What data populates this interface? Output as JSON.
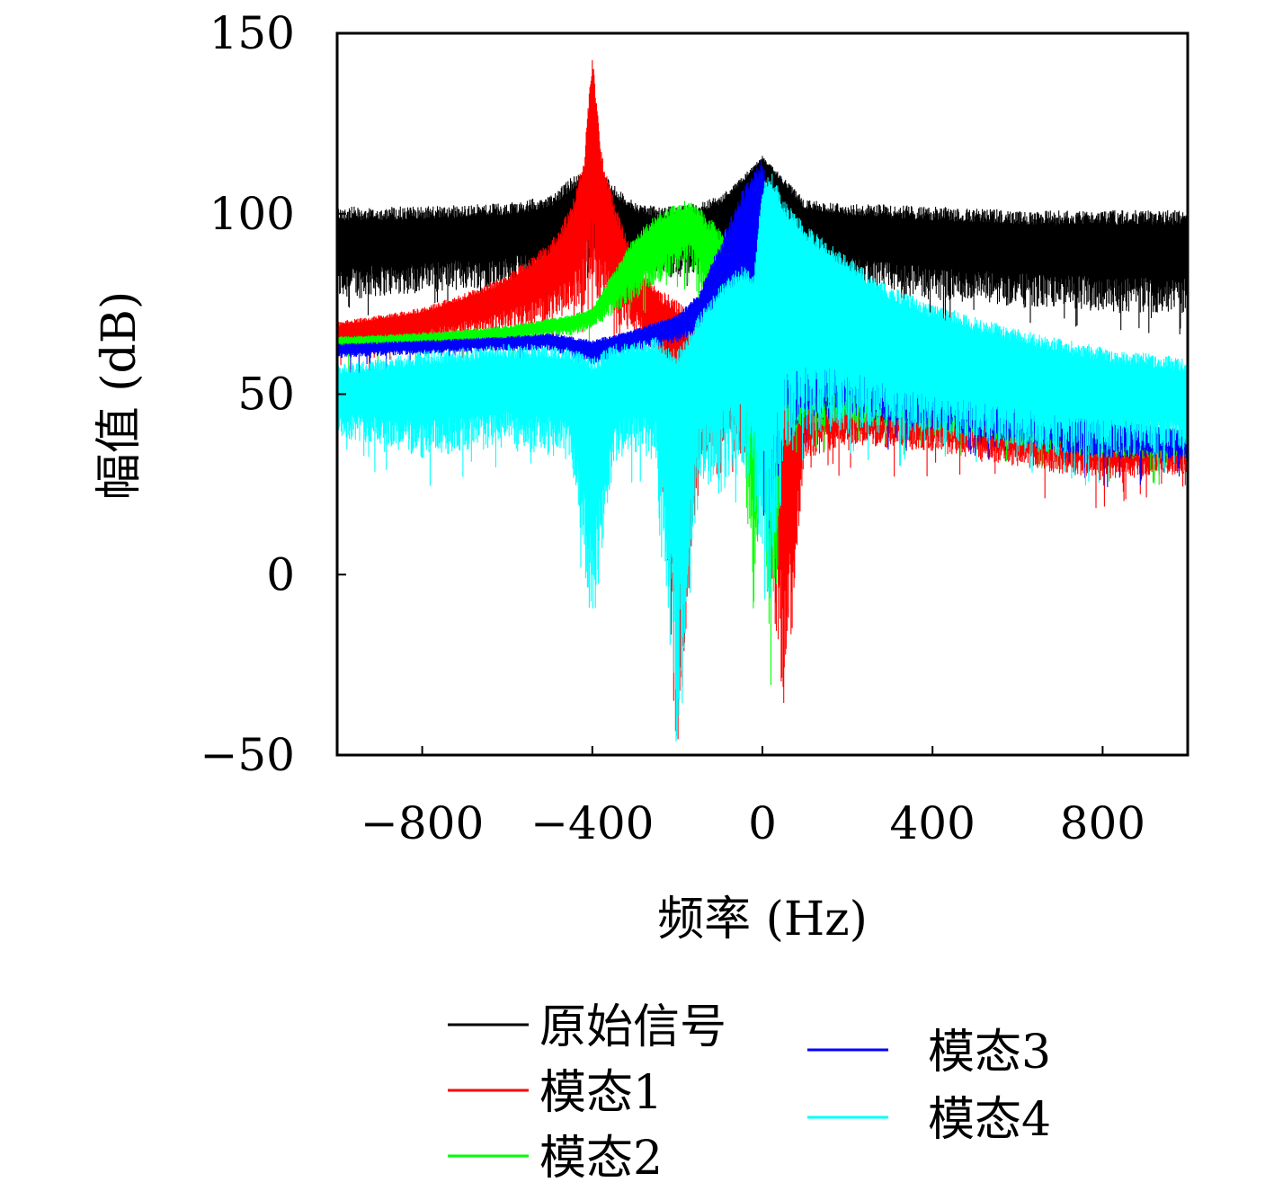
{
  "chart_data": {
    "type": "line",
    "title": "",
    "xlabel": "频率 (Hz)",
    "ylabel": "幅值 (dB)",
    "xlim": [
      -1000,
      1000
    ],
    "ylim": [
      -50,
      150
    ],
    "xticks": [
      -800,
      -400,
      0,
      400,
      800
    ],
    "yticks": [
      -50,
      0,
      50,
      100,
      150
    ],
    "xtick_labels": [
      "−800",
      "−400",
      "0",
      "400",
      "800"
    ],
    "ytick_labels": [
      "−50",
      "0",
      "50",
      "100",
      "150"
    ],
    "grid": false,
    "legend_position": "bottom",
    "series": [
      {
        "name": "原始信号",
        "color": "#000000",
        "x": [
          -1000,
          -800,
          -600,
          -500,
          -450,
          -400,
          -350,
          -300,
          -250,
          -200,
          -150,
          -100,
          -50,
          0,
          50,
          100,
          200,
          400,
          600,
          800,
          1000
        ],
        "y_upper": [
          102,
          102,
          103,
          105,
          110,
          115,
          108,
          103,
          102,
          102,
          103,
          105,
          110,
          116,
          110,
          104,
          103,
          102,
          101,
          101,
          101
        ],
        "y_lower": [
          76,
          78,
          80,
          82,
          85,
          88,
          85,
          84,
          83,
          82,
          84,
          88,
          96,
          110,
          96,
          86,
          80,
          76,
          74,
          73,
          72
        ]
      },
      {
        "name": "模态1",
        "color": "#ff0000",
        "x": [
          -1000,
          -800,
          -700,
          -600,
          -500,
          -450,
          -420,
          -400,
          -380,
          -350,
          -300,
          -250,
          -200,
          -150,
          -100,
          -50,
          0,
          50,
          100,
          200,
          400,
          600,
          800,
          1000
        ],
        "y_upper": [
          70,
          74,
          78,
          83,
          92,
          102,
          115,
          144,
          118,
          104,
          88,
          80,
          76,
          72,
          70,
          66,
          62,
          58,
          55,
          52,
          48,
          44,
          42,
          38
        ],
        "y_lower": [
          62,
          64,
          66,
          68,
          70,
          72,
          74,
          78,
          74,
          70,
          66,
          62,
          -46,
          30,
          36,
          32,
          25,
          -38,
          32,
          36,
          34,
          30,
          26,
          28
        ]
      },
      {
        "name": "模态2",
        "color": "#00ff00",
        "x": [
          -1000,
          -800,
          -600,
          -500,
          -450,
          -400,
          -350,
          -300,
          -250,
          -200,
          -170,
          -150,
          -100,
          -50,
          -20,
          0,
          20,
          50,
          100,
          200,
          400,
          600,
          800,
          1000
        ],
        "y_upper": [
          66,
          67,
          69,
          71,
          72,
          74,
          84,
          94,
          100,
          103,
          104,
          102,
          96,
          88,
          82,
          80,
          76,
          70,
          64,
          58,
          52,
          48,
          44,
          40
        ],
        "y_lower": [
          62,
          63,
          64,
          66,
          66,
          68,
          72,
          76,
          80,
          84,
          86,
          80,
          62,
          44,
          -17,
          30,
          -26,
          38,
          40,
          42,
          40,
          36,
          32,
          32
        ]
      },
      {
        "name": "模态3",
        "color": "#0000ff",
        "x": [
          -1000,
          -800,
          -600,
          -500,
          -400,
          -300,
          -200,
          -150,
          -100,
          -50,
          -20,
          0,
          20,
          50,
          100,
          200,
          400,
          600,
          800,
          1000
        ],
        "y_upper": [
          64,
          65,
          66,
          67,
          65,
          68,
          72,
          78,
          92,
          106,
          112,
          116,
          100,
          84,
          74,
          62,
          54,
          48,
          44,
          40
        ],
        "y_lower": [
          60,
          61,
          62,
          62,
          58,
          62,
          64,
          66,
          70,
          60,
          40,
          14,
          6,
          36,
          42,
          44,
          40,
          36,
          32,
          32
        ]
      },
      {
        "name": "模态4",
        "color": "#00ffff",
        "x": [
          -1000,
          -900,
          -800,
          -700,
          -600,
          -500,
          -450,
          -400,
          -350,
          -300,
          -250,
          -200,
          -150,
          -100,
          -50,
          -20,
          0,
          20,
          50,
          100,
          200,
          300,
          400,
          600,
          800,
          1000
        ],
        "y_upper": [
          58,
          60,
          62,
          63,
          64,
          64,
          63,
          60,
          64,
          65,
          66,
          62,
          72,
          80,
          86,
          84,
          108,
          112,
          104,
          97,
          88,
          80,
          75,
          68,
          63,
          60
        ],
        "y_lower": [
          38,
          36,
          32,
          34,
          35,
          33,
          31,
          -16,
          30,
          34,
          30,
          -46,
          24,
          26,
          28,
          20,
          0,
          -8,
          30,
          38,
          40,
          38,
          36,
          34,
          32,
          34
        ]
      }
    ],
    "legend": [
      {
        "label": "原始信号",
        "color": "#000000"
      },
      {
        "label": "模态1",
        "color": "#ff0000"
      },
      {
        "label": "模态2",
        "color": "#00ff00"
      },
      {
        "label": "模态3",
        "color": "#0000ff"
      },
      {
        "label": "模态4",
        "color": "#00ffff"
      }
    ]
  }
}
